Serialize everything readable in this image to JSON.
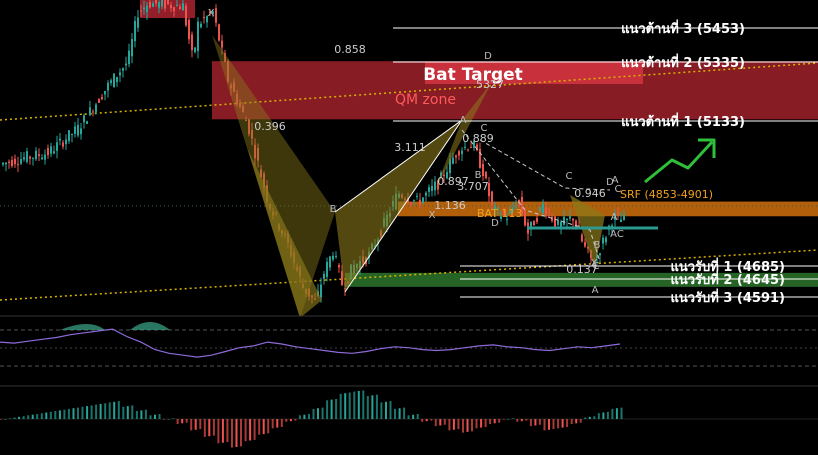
{
  "chart_data": {
    "type": "candlestick",
    "instrument_note": "",
    "price_axis": {
      "min": 4540,
      "max": 5560
    },
    "candles_summary": [
      {
        "phase": "rally",
        "from": 5020,
        "to": 5560
      },
      {
        "phase": "drop",
        "from": 5540,
        "to": 4560
      },
      {
        "phase": "rebound",
        "from": 4580,
        "to": 5110
      },
      {
        "phase": "pullback",
        "from": 5100,
        "to": 4700
      },
      {
        "phase": "bounce",
        "from": 4700,
        "to": 4860
      }
    ],
    "annotations": {
      "bat_target": "Bat Target",
      "qm_zone": "QM zone",
      "bat_label": "BAT 113",
      "srf_label": "SRF (4853-4901)",
      "ratios": [
        "0.858",
        "0.396",
        "3.111",
        "0.897",
        "3.707",
        "1.136",
        "0.889",
        "0.946",
        "0.137",
        "5327"
      ],
      "points": [
        "X",
        "A",
        "B",
        "C",
        "D",
        "X",
        "A",
        "B",
        "C",
        "D",
        "A",
        "C",
        "X",
        "A",
        "B",
        "C",
        "D",
        "AC"
      ]
    },
    "resistance_levels": [
      {
        "label": "แนวต้านที่  3 (5453)",
        "value": 5453
      },
      {
        "label": "แนวต้านที่  2 (5335)",
        "value": 5335
      },
      {
        "label": "แนวต้านที่ 1 (5133)",
        "value": 5133
      }
    ],
    "support_levels": [
      {
        "label": "แนวรับที่ 1 (4685)",
        "value": 4685
      },
      {
        "label": "แนวรับที่ 2 (4645)",
        "value": 4645
      },
      {
        "label": "แนวรับที่ 3 (4591)",
        "value": 4591
      }
    ],
    "zones": [
      {
        "name": "Bat Target",
        "from": 5170,
        "to": 5360,
        "color": "#b52632"
      },
      {
        "name": "SRF",
        "from": 4853,
        "to": 4901,
        "color": "#d1700e"
      },
      {
        "name": "support",
        "from": 4632,
        "to": 4668,
        "color": "#2f7d2f"
      }
    ],
    "indicators": {
      "rsi": {
        "values": [
          52,
          51,
          53,
          55,
          57,
          60,
          62,
          64,
          66,
          58,
          52,
          44,
          40,
          38,
          36,
          38,
          42,
          46,
          48,
          52,
          50,
          47,
          45,
          43,
          41,
          40,
          42,
          45,
          47,
          46,
          44,
          43,
          44,
          46,
          48,
          49,
          47,
          46,
          44,
          43,
          45,
          47,
          46,
          48,
          50
        ]
      },
      "macd_hist": {
        "values": [
          0,
          1,
          2,
          3,
          4,
          5,
          6,
          7,
          8,
          6,
          4,
          2,
          0,
          -2,
          -5,
          -8,
          -11,
          -13,
          -10,
          -7,
          -4,
          -1,
          2,
          5,
          9,
          12,
          13,
          11,
          8,
          5,
          2,
          -1,
          -3,
          -5,
          -6,
          -4,
          -2,
          0,
          -1,
          -3,
          -5,
          -4,
          -2,
          1,
          3,
          5
        ]
      }
    },
    "colors": {
      "up": "#26a69a",
      "down": "#ef5350",
      "bat": "#d4b106",
      "bat_fill": "#8a7a1a",
      "rsi_line": "#8e6bd8",
      "dotted_trend": "#d6b300",
      "arrow": "#2fbf3a"
    }
  }
}
